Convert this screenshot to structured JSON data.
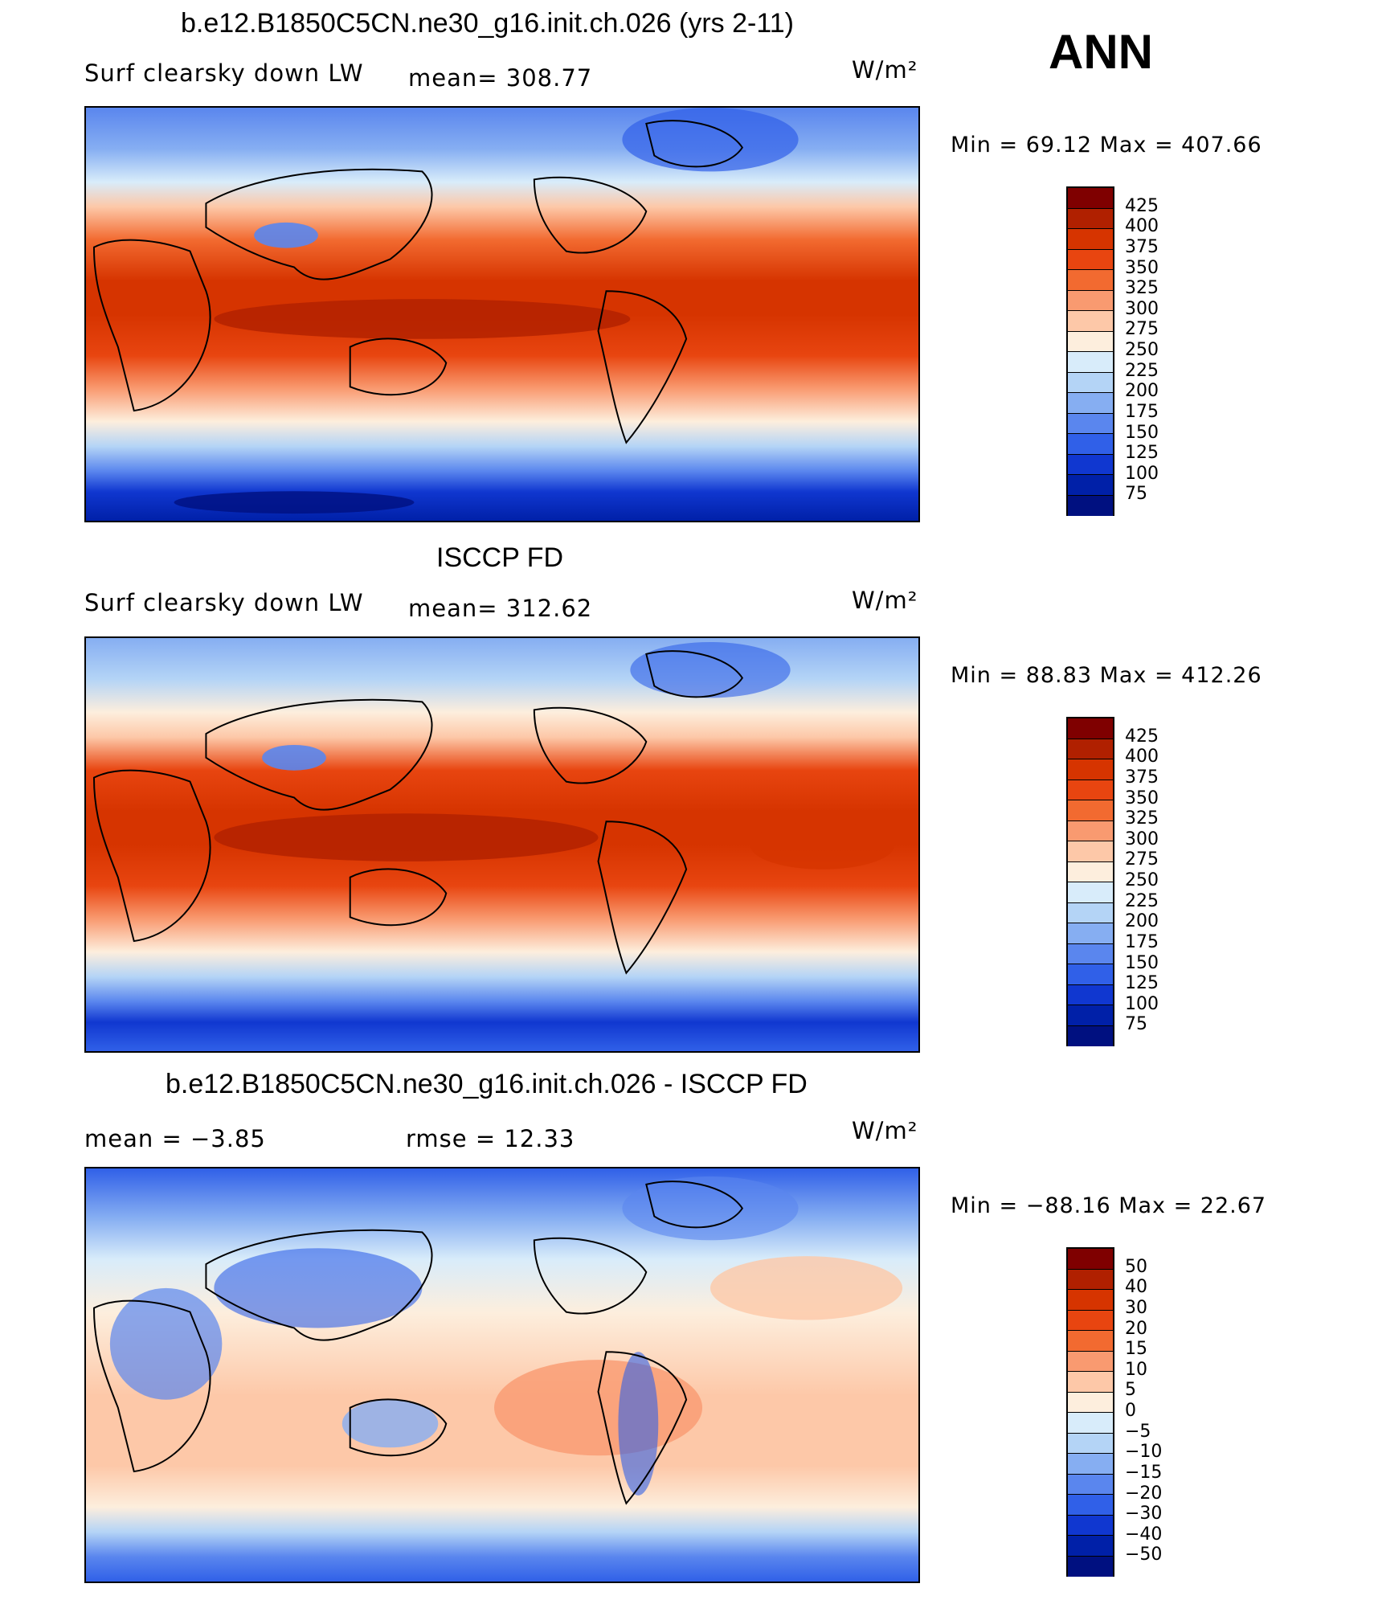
{
  "header": {
    "ann": "ANN",
    "units": "W/m²"
  },
  "panels": [
    {
      "title": "b.e12.B1850C5CN.ne30_g16.init.ch.026 (yrs 2-11)",
      "left_label": "Surf clearsky down LW",
      "center_label": "mean=  308.77",
      "units": "W/m²",
      "minmax": "Min =   69.12 Max =  407.66",
      "colorbar": {
        "labels": [
          "425",
          "400",
          "375",
          "350",
          "325",
          "300",
          "275",
          "250",
          "225",
          "200",
          "175",
          "150",
          "125",
          "100",
          "75"
        ],
        "colors": [
          "#7f0000",
          "#b02000",
          "#d63400",
          "#e84510",
          "#f26a30",
          "#f99a70",
          "#fdc8a8",
          "#fdeedd",
          "#d8ecfa",
          "#b4d4f6",
          "#86aef2",
          "#5a86ee",
          "#3060e8",
          "#1037d0",
          "#0020a8",
          "#001080"
        ]
      }
    },
    {
      "title": "ISCCP FD",
      "left_label": "Surf clearsky down LW",
      "center_label": "mean=  312.62",
      "units": "W/m²",
      "minmax": "Min =   88.83 Max =  412.26",
      "colorbar": {
        "labels": [
          "425",
          "400",
          "375",
          "350",
          "325",
          "300",
          "275",
          "250",
          "225",
          "200",
          "175",
          "150",
          "125",
          "100",
          "75"
        ],
        "colors": [
          "#7f0000",
          "#b02000",
          "#d63400",
          "#e84510",
          "#f26a30",
          "#f99a70",
          "#fdc8a8",
          "#fdeedd",
          "#d8ecfa",
          "#b4d4f6",
          "#86aef2",
          "#5a86ee",
          "#3060e8",
          "#1037d0",
          "#0020a8",
          "#001080"
        ]
      }
    },
    {
      "title": "b.e12.B1850C5CN.ne30_g16.init.ch.026 - ISCCP FD",
      "left_label": "mean =   −3.85",
      "center_label": "rmse =   12.33",
      "units": "W/m²",
      "minmax": "Min = −88.16 Max =   22.67",
      "colorbar": {
        "labels": [
          "50",
          "40",
          "30",
          "20",
          "15",
          "10",
          "5",
          "0",
          "−5",
          "−10",
          "−15",
          "−20",
          "−30",
          "−40",
          "−50"
        ],
        "colors": [
          "#7f0000",
          "#b02000",
          "#d63400",
          "#e84510",
          "#f26a30",
          "#f99a70",
          "#fdc8a8",
          "#fdeedd",
          "#d8ecfa",
          "#b4d4f6",
          "#86aef2",
          "#5a86ee",
          "#3060e8",
          "#1037d0",
          "#0020a8",
          "#001080"
        ]
      }
    }
  ]
}
